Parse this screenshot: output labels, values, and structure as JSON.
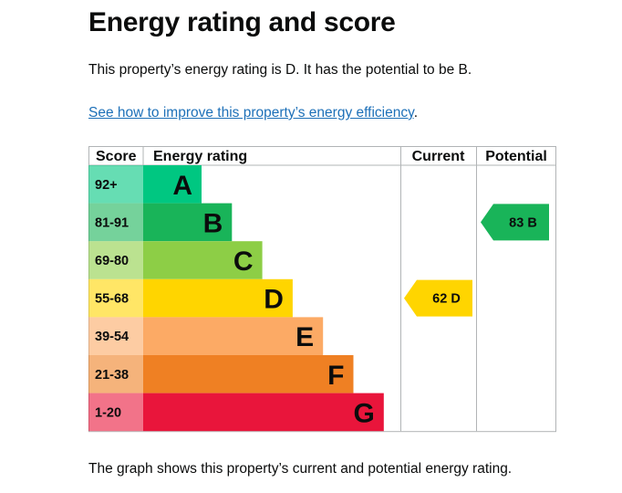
{
  "page": {
    "title": "Energy rating and score",
    "summary": "This property’s energy rating is D. It has the potential to be B.",
    "link_text": "See how to improve this property’s energy efficiency",
    "link_suffix": ".",
    "footer": "The graph shows this property’s current and potential energy rating."
  },
  "chart_data": {
    "type": "table",
    "headers": {
      "score": "Score",
      "rating": "Energy rating",
      "current": "Current",
      "potential": "Potential"
    },
    "bands": [
      {
        "range": "92+",
        "letter": "A",
        "color": "#00c781"
      },
      {
        "range": "81-91",
        "letter": "B",
        "color": "#19b459"
      },
      {
        "range": "69-80",
        "letter": "C",
        "color": "#8dce46"
      },
      {
        "range": "55-68",
        "letter": "D",
        "color": "#ffd500"
      },
      {
        "range": "39-54",
        "letter": "E",
        "color": "#fcaa65"
      },
      {
        "range": "21-38",
        "letter": "F",
        "color": "#ef8023"
      },
      {
        "range": "1-20",
        "letter": "G",
        "color": "#e9153b"
      }
    ],
    "current": {
      "score": 62,
      "band": "D",
      "label": "62  D",
      "color": "#ffd500"
    },
    "potential": {
      "score": 83,
      "band": "B",
      "label": "83  B",
      "color": "#19b459"
    }
  }
}
